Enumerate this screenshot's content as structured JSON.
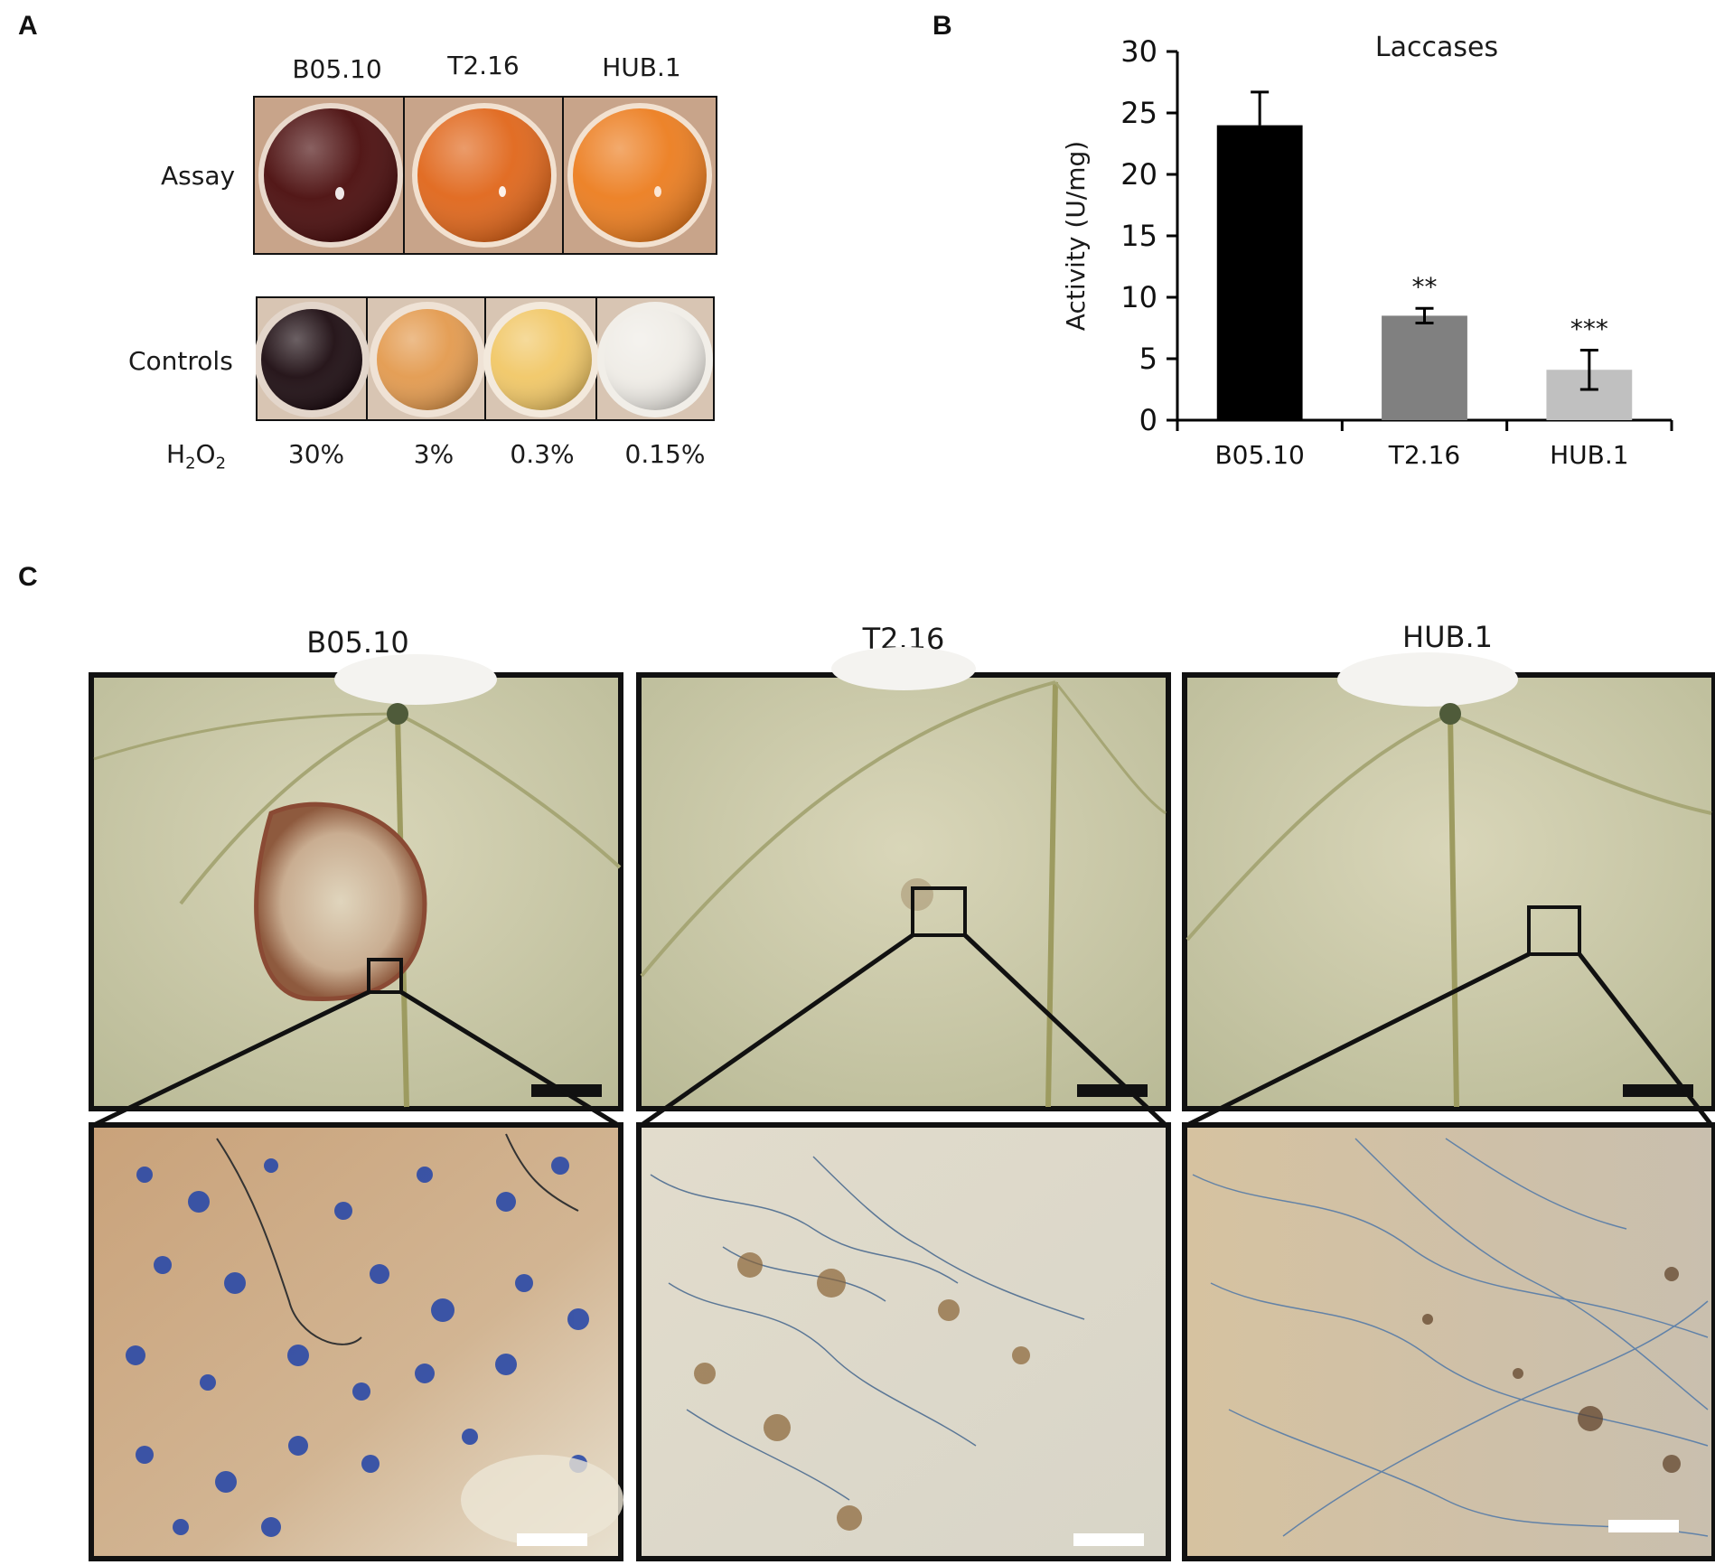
{
  "panel_labels": {
    "a": "A",
    "b": "B",
    "c": "C"
  },
  "panel_a": {
    "strains": [
      "B05.10",
      "T2.16",
      "HUB.1"
    ],
    "row_assay": "Assay",
    "row_controls": "Controls",
    "h2o2_label": {
      "h": "H",
      "sub1": "2",
      "o": "O",
      "sub2": "2"
    },
    "control_concentrations": [
      "30%",
      "3%",
      "0.3%",
      "0.15%"
    ],
    "assay_colors": [
      "#4a0c0c",
      "#e0661a",
      "#ec7d1f"
    ],
    "control_colors": [
      "#1c0b10",
      "#e39a4e",
      "#f1c766",
      "#efece6"
    ]
  },
  "chart_data": {
    "type": "bar",
    "title": "Laccases",
    "ylabel": "Activity (U/mg)",
    "xlabel": "",
    "categories": [
      "B05.10",
      "T2.16",
      "HUB.1"
    ],
    "values": [
      24.0,
      8.5,
      4.1
    ],
    "errors": [
      2.7,
      0.6,
      1.6
    ],
    "significance": [
      "",
      "**",
      "***"
    ],
    "bar_colors": [
      "#000000",
      "#808080",
      "#c0c0c0"
    ],
    "ylim": [
      0,
      30
    ],
    "yticks": [
      "0",
      "5",
      "10",
      "15",
      "20",
      "25",
      "30"
    ],
    "grid": false
  },
  "panel_c": {
    "titles": [
      "B05.10",
      "T2.16",
      "HUB.1"
    ]
  }
}
